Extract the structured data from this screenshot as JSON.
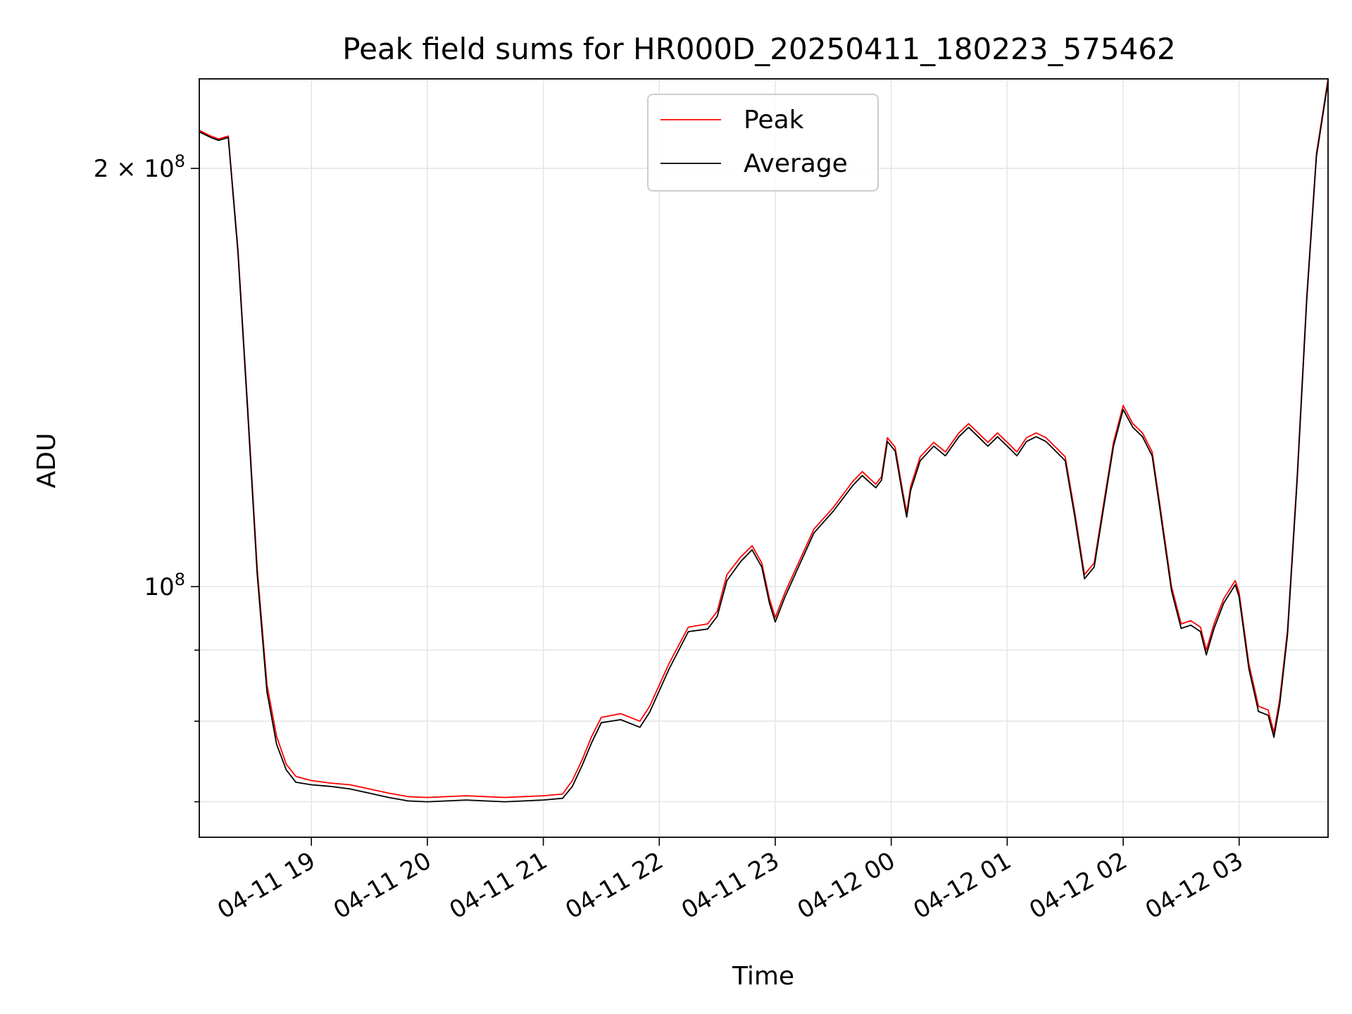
{
  "chart_data": {
    "type": "line",
    "title": "Peak field sums for HR000D_20250411_180223_575462",
    "xlabel": "Time",
    "ylabel": "ADU",
    "y_scale": "log",
    "ylim": [
      66000000,
      232000000
    ],
    "xlim": [
      "2025-04-11 18:02",
      "2025-04-12 03:46"
    ],
    "grid": true,
    "legend": {
      "position": "upper center",
      "entries": [
        "Peak",
        "Average"
      ]
    },
    "x_ticks": [
      "04-11 19",
      "04-11 20",
      "04-11 21",
      "04-11 22",
      "04-11 23",
      "04-12 00",
      "04-12 01",
      "04-12 02",
      "04-12 03"
    ],
    "x_tick_times": [
      "2025-04-11 19:00",
      "2025-04-11 20:00",
      "2025-04-11 21:00",
      "2025-04-11 22:00",
      "2025-04-11 23:00",
      "2025-04-12 00:00",
      "2025-04-12 01:00",
      "2025-04-12 02:00",
      "2025-04-12 03:00"
    ],
    "y_tick_labels": [
      {
        "value": 200000000,
        "mantissa": "2",
        "times": "×",
        "base": "10",
        "exp": "8"
      },
      {
        "value": 100000000,
        "mantissa": "",
        "times": "",
        "base": "10",
        "exp": "8"
      }
    ],
    "y_minor_ticks": [
      70000000,
      80000000,
      90000000
    ],
    "series": [
      {
        "name": "Peak",
        "color": "#ff0000",
        "points": [
          [
            "2025-04-11 18:02",
            213000000
          ],
          [
            "2025-04-11 18:08",
            211000000
          ],
          [
            "2025-04-11 18:12",
            210000000
          ],
          [
            "2025-04-11 18:17",
            211000000
          ],
          [
            "2025-04-11 18:22",
            175000000
          ],
          [
            "2025-04-11 18:27",
            135000000
          ],
          [
            "2025-04-11 18:32",
            103000000
          ],
          [
            "2025-04-11 18:37",
            85000000
          ],
          [
            "2025-04-11 18:42",
            78000000
          ],
          [
            "2025-04-11 18:47",
            74500000
          ],
          [
            "2025-04-11 18:52",
            73000000
          ],
          [
            "2025-04-11 19:00",
            72500000
          ],
          [
            "2025-04-11 19:10",
            72200000
          ],
          [
            "2025-04-11 19:20",
            72000000
          ],
          [
            "2025-04-11 19:30",
            71500000
          ],
          [
            "2025-04-11 19:40",
            71000000
          ],
          [
            "2025-04-11 19:50",
            70600000
          ],
          [
            "2025-04-11 20:00",
            70500000
          ],
          [
            "2025-04-11 20:10",
            70600000
          ],
          [
            "2025-04-11 20:20",
            70700000
          ],
          [
            "2025-04-11 20:30",
            70600000
          ],
          [
            "2025-04-11 20:40",
            70500000
          ],
          [
            "2025-04-11 20:50",
            70600000
          ],
          [
            "2025-04-11 21:00",
            70700000
          ],
          [
            "2025-04-11 21:10",
            70900000
          ],
          [
            "2025-04-11 21:15",
            72500000
          ],
          [
            "2025-04-11 21:20",
            75000000
          ],
          [
            "2025-04-11 21:25",
            78000000
          ],
          [
            "2025-04-11 21:30",
            80500000
          ],
          [
            "2025-04-11 21:40",
            81000000
          ],
          [
            "2025-04-11 21:50",
            80000000
          ],
          [
            "2025-04-11 21:55",
            82000000
          ],
          [
            "2025-04-11 22:05",
            88000000
          ],
          [
            "2025-04-11 22:15",
            93500000
          ],
          [
            "2025-04-11 22:25",
            94000000
          ],
          [
            "2025-04-11 22:30",
            96000000
          ],
          [
            "2025-04-11 22:35",
            102000000
          ],
          [
            "2025-04-11 22:42",
            105000000
          ],
          [
            "2025-04-11 22:48",
            107000000
          ],
          [
            "2025-04-11 22:53",
            104000000
          ],
          [
            "2025-04-11 22:57",
            98000000
          ],
          [
            "2025-04-11 23:00",
            95000000
          ],
          [
            "2025-04-11 23:05",
            99000000
          ],
          [
            "2025-04-11 23:12",
            104000000
          ],
          [
            "2025-04-11 23:20",
            110000000
          ],
          [
            "2025-04-11 23:30",
            114000000
          ],
          [
            "2025-04-11 23:40",
            119000000
          ],
          [
            "2025-04-11 23:45",
            121000000
          ],
          [
            "2025-04-11 23:52",
            118500000
          ],
          [
            "2025-04-11 23:55",
            120000000
          ],
          [
            "2025-04-11 23:58",
            128000000
          ],
          [
            "2025-04-12 00:02",
            126000000
          ],
          [
            "2025-04-12 00:06",
            117000000
          ],
          [
            "2025-04-12 00:08",
            113000000
          ],
          [
            "2025-04-12 00:10",
            118000000
          ],
          [
            "2025-04-12 00:15",
            124000000
          ],
          [
            "2025-04-12 00:22",
            127000000
          ],
          [
            "2025-04-12 00:28",
            125000000
          ],
          [
            "2025-04-12 00:35",
            129000000
          ],
          [
            "2025-04-12 00:40",
            131000000
          ],
          [
            "2025-04-12 00:45",
            129000000
          ],
          [
            "2025-04-12 00:50",
            127000000
          ],
          [
            "2025-04-12 00:55",
            129000000
          ],
          [
            "2025-04-12 01:00",
            127000000
          ],
          [
            "2025-04-12 01:05",
            125000000
          ],
          [
            "2025-04-12 01:10",
            128000000
          ],
          [
            "2025-04-12 01:15",
            129000000
          ],
          [
            "2025-04-12 01:20",
            128000000
          ],
          [
            "2025-04-12 01:25",
            126000000
          ],
          [
            "2025-04-12 01:30",
            124000000
          ],
          [
            "2025-04-12 01:35",
            113000000
          ],
          [
            "2025-04-12 01:40",
            102000000
          ],
          [
            "2025-04-12 01:45",
            104000000
          ],
          [
            "2025-04-12 01:50",
            115000000
          ],
          [
            "2025-04-12 01:55",
            127000000
          ],
          [
            "2025-04-12 02:00",
            135000000
          ],
          [
            "2025-04-12 02:05",
            131000000
          ],
          [
            "2025-04-12 02:10",
            129000000
          ],
          [
            "2025-04-12 02:15",
            125000000
          ],
          [
            "2025-04-12 02:18",
            117000000
          ],
          [
            "2025-04-12 02:20",
            112000000
          ],
          [
            "2025-04-12 02:25",
            100000000
          ],
          [
            "2025-04-12 02:30",
            94000000
          ],
          [
            "2025-04-12 02:35",
            94500000
          ],
          [
            "2025-04-12 02:40",
            93500000
          ],
          [
            "2025-04-12 02:43",
            90000000
          ],
          [
            "2025-04-12 02:47",
            94000000
          ],
          [
            "2025-04-12 02:52",
            98000000
          ],
          [
            "2025-04-12 02:58",
            101000000
          ],
          [
            "2025-04-12 03:00",
            99000000
          ],
          [
            "2025-04-12 03:05",
            88000000
          ],
          [
            "2025-04-12 03:10",
            82000000
          ],
          [
            "2025-04-12 03:15",
            81500000
          ],
          [
            "2025-04-12 03:18",
            78500000
          ],
          [
            "2025-04-12 03:21",
            83000000
          ],
          [
            "2025-04-12 03:25",
            93000000
          ],
          [
            "2025-04-12 03:30",
            120000000
          ],
          [
            "2025-04-12 03:35",
            162000000
          ],
          [
            "2025-04-12 03:40",
            205000000
          ],
          [
            "2025-04-12 03:46",
            232000000
          ]
        ]
      },
      {
        "name": "Average",
        "color": "#000000",
        "points": [
          [
            "2025-04-11 18:02",
            212500000
          ],
          [
            "2025-04-11 18:08",
            210500000
          ],
          [
            "2025-04-11 18:12",
            209500000
          ],
          [
            "2025-04-11 18:17",
            210500000
          ],
          [
            "2025-04-11 18:22",
            174000000
          ],
          [
            "2025-04-11 18:27",
            134000000
          ],
          [
            "2025-04-11 18:32",
            102000000
          ],
          [
            "2025-04-11 18:37",
            84000000
          ],
          [
            "2025-04-11 18:42",
            77000000
          ],
          [
            "2025-04-11 18:47",
            73800000
          ],
          [
            "2025-04-11 18:52",
            72300000
          ],
          [
            "2025-04-11 19:00",
            72000000
          ],
          [
            "2025-04-11 19:10",
            71800000
          ],
          [
            "2025-04-11 19:20",
            71500000
          ],
          [
            "2025-04-11 19:30",
            71000000
          ],
          [
            "2025-04-11 19:40",
            70500000
          ],
          [
            "2025-04-11 19:50",
            70100000
          ],
          [
            "2025-04-11 20:00",
            70000000
          ],
          [
            "2025-04-11 20:10",
            70100000
          ],
          [
            "2025-04-11 20:20",
            70200000
          ],
          [
            "2025-04-11 20:30",
            70100000
          ],
          [
            "2025-04-11 20:40",
            70000000
          ],
          [
            "2025-04-11 20:50",
            70100000
          ],
          [
            "2025-04-11 21:00",
            70200000
          ],
          [
            "2025-04-11 21:10",
            70400000
          ],
          [
            "2025-04-11 21:15",
            71800000
          ],
          [
            "2025-04-11 21:20",
            74300000
          ],
          [
            "2025-04-11 21:25",
            77200000
          ],
          [
            "2025-04-11 21:30",
            79800000
          ],
          [
            "2025-04-11 21:40",
            80200000
          ],
          [
            "2025-04-11 21:50",
            79200000
          ],
          [
            "2025-04-11 21:55",
            81200000
          ],
          [
            "2025-04-11 22:05",
            87200000
          ],
          [
            "2025-04-11 22:15",
            92800000
          ],
          [
            "2025-04-11 22:25",
            93200000
          ],
          [
            "2025-04-11 22:30",
            95200000
          ],
          [
            "2025-04-11 22:35",
            101000000
          ],
          [
            "2025-04-11 22:42",
            104200000
          ],
          [
            "2025-04-11 22:48",
            106300000
          ],
          [
            "2025-04-11 22:53",
            103300000
          ],
          [
            "2025-04-11 22:57",
            97300000
          ],
          [
            "2025-04-11 23:00",
            94300000
          ],
          [
            "2025-04-11 23:05",
            98300000
          ],
          [
            "2025-04-11 23:12",
            103300000
          ],
          [
            "2025-04-11 23:20",
            109300000
          ],
          [
            "2025-04-11 23:30",
            113300000
          ],
          [
            "2025-04-11 23:40",
            118200000
          ],
          [
            "2025-04-11 23:45",
            120200000
          ],
          [
            "2025-04-11 23:52",
            117800000
          ],
          [
            "2025-04-11 23:55",
            119300000
          ],
          [
            "2025-04-11 23:58",
            127200000
          ],
          [
            "2025-04-12 00:02",
            125200000
          ],
          [
            "2025-04-12 00:06",
            116200000
          ],
          [
            "2025-04-12 00:08",
            112200000
          ],
          [
            "2025-04-12 00:10",
            117200000
          ],
          [
            "2025-04-12 00:15",
            123200000
          ],
          [
            "2025-04-12 00:22",
            126200000
          ],
          [
            "2025-04-12 00:28",
            124200000
          ],
          [
            "2025-04-12 00:35",
            128200000
          ],
          [
            "2025-04-12 00:40",
            130200000
          ],
          [
            "2025-04-12 00:45",
            128200000
          ],
          [
            "2025-04-12 00:50",
            126200000
          ],
          [
            "2025-04-12 00:55",
            128200000
          ],
          [
            "2025-04-12 01:00",
            126200000
          ],
          [
            "2025-04-12 01:05",
            124200000
          ],
          [
            "2025-04-12 01:10",
            127200000
          ],
          [
            "2025-04-12 01:15",
            128200000
          ],
          [
            "2025-04-12 01:20",
            127200000
          ],
          [
            "2025-04-12 01:25",
            125200000
          ],
          [
            "2025-04-12 01:30",
            123200000
          ],
          [
            "2025-04-12 01:35",
            112200000
          ],
          [
            "2025-04-12 01:40",
            101300000
          ],
          [
            "2025-04-12 01:45",
            103300000
          ],
          [
            "2025-04-12 01:50",
            114200000
          ],
          [
            "2025-04-12 01:55",
            126200000
          ],
          [
            "2025-04-12 02:00",
            134100000
          ],
          [
            "2025-04-12 02:05",
            130200000
          ],
          [
            "2025-04-12 02:10",
            128200000
          ],
          [
            "2025-04-12 02:15",
            124200000
          ],
          [
            "2025-04-12 02:18",
            116200000
          ],
          [
            "2025-04-12 02:20",
            111200000
          ],
          [
            "2025-04-12 02:25",
            99300000
          ],
          [
            "2025-04-12 02:30",
            93300000
          ],
          [
            "2025-04-12 02:35",
            93800000
          ],
          [
            "2025-04-12 02:40",
            92800000
          ],
          [
            "2025-04-12 02:43",
            89300000
          ],
          [
            "2025-04-12 02:47",
            93300000
          ],
          [
            "2025-04-12 02:52",
            97300000
          ],
          [
            "2025-04-12 02:58",
            100300000
          ],
          [
            "2025-04-12 03:00",
            98300000
          ],
          [
            "2025-04-12 03:05",
            87300000
          ],
          [
            "2025-04-12 03:10",
            81300000
          ],
          [
            "2025-04-12 03:15",
            80800000
          ],
          [
            "2025-04-12 03:18",
            77900000
          ],
          [
            "2025-04-12 03:21",
            82300000
          ],
          [
            "2025-04-12 03:25",
            92300000
          ],
          [
            "2025-04-12 03:30",
            119200000
          ],
          [
            "2025-04-12 03:35",
            161000000
          ],
          [
            "2025-04-12 03:40",
            204000000
          ],
          [
            "2025-04-12 03:46",
            231000000
          ]
        ]
      }
    ]
  }
}
